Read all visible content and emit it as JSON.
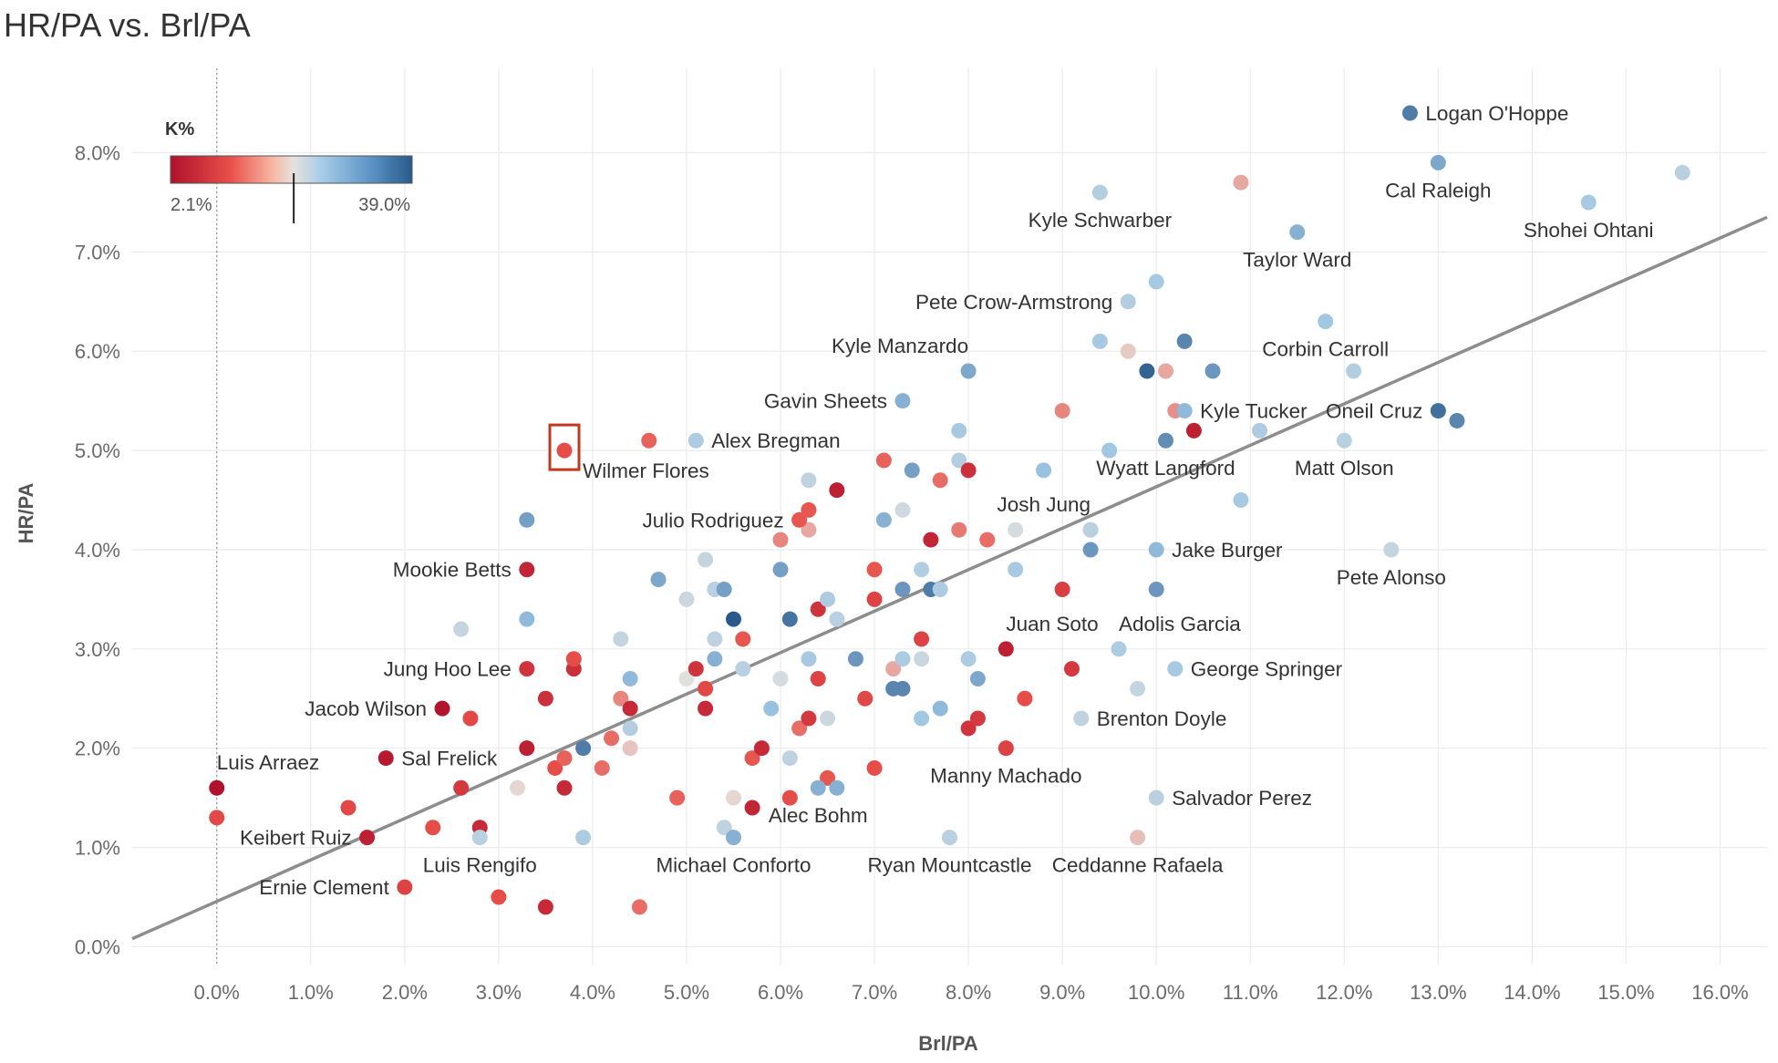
{
  "chart_data": {
    "type": "scatter",
    "title": "HR/PA vs. Brl/PA",
    "xlabel": "Brl/PA",
    "ylabel": "HR/PA",
    "xlim": [
      -0.9,
      16.5
    ],
    "ylim": [
      -0.18,
      8.85
    ],
    "x_ticks": [
      0,
      1,
      2,
      3,
      4,
      5,
      6,
      7,
      8,
      9,
      10,
      11,
      12,
      13,
      14,
      15,
      16
    ],
    "x_tick_labels": [
      "0.0%",
      "1.0%",
      "2.0%",
      "3.0%",
      "4.0%",
      "5.0%",
      "6.0%",
      "7.0%",
      "8.0%",
      "9.0%",
      "10.0%",
      "11.0%",
      "12.0%",
      "13.0%",
      "14.0%",
      "15.0%",
      "16.0%"
    ],
    "y_ticks": [
      0,
      1,
      2,
      3,
      4,
      5,
      6,
      7,
      8
    ],
    "y_tick_labels": [
      "0.0%",
      "1.0%",
      "2.0%",
      "3.0%",
      "4.0%",
      "5.0%",
      "6.0%",
      "7.0%",
      "8.0%"
    ],
    "trend_line": {
      "x": [
        -0.9,
        16.5
      ],
      "y": [
        0.08,
        7.35
      ]
    },
    "highlight": "Wilmer Flores",
    "legend": {
      "title": "K%",
      "min_label": "2.1%",
      "max_label": "39.0%",
      "marker_fraction": 0.51
    },
    "colors": {
      "low": "#b0112c",
      "mid_low": "#e8504a",
      "mid": "#e6e2dd",
      "mid_high": "#9fc6e3",
      "high": "#2a5a8c",
      "highlight_box": "#c1391f"
    },
    "named_points": [
      {
        "name": "Logan O'Hoppe",
        "x": 12.7,
        "y": 8.4,
        "k": 0.92,
        "label_pos": "right"
      },
      {
        "name": "Cal Raleigh",
        "x": 13.0,
        "y": 7.9,
        "k": 0.82,
        "label_pos": "below"
      },
      {
        "name": "Shohei Ohtani",
        "x": 14.6,
        "y": 7.5,
        "k": 0.72,
        "label_pos": "below"
      },
      {
        "name": "Kyle Schwarber",
        "x": 9.4,
        "y": 7.6,
        "k": 0.68,
        "label_pos": "below"
      },
      {
        "name": "Taylor Ward",
        "x": 11.5,
        "y": 7.2,
        "k": 0.8,
        "label_pos": "below"
      },
      {
        "name": "Pete Crow-Armstrong",
        "x": 9.7,
        "y": 6.5,
        "k": 0.68,
        "label_pos": "left"
      },
      {
        "name": "Corbin Carroll",
        "x": 11.8,
        "y": 6.3,
        "k": 0.74,
        "label_pos": "below"
      },
      {
        "name": "Kyle Manzardo",
        "x": 8.0,
        "y": 5.8,
        "k": 0.82,
        "label_pos": "above-left"
      },
      {
        "name": "Gavin Sheets",
        "x": 7.3,
        "y": 5.5,
        "k": 0.8,
        "label_pos": "left"
      },
      {
        "name": "Kyle Tucker",
        "x": 10.3,
        "y": 5.4,
        "k": 0.78,
        "label_pos": "right"
      },
      {
        "name": "Oneil Cruz",
        "x": 13.0,
        "y": 5.4,
        "k": 0.95,
        "label_pos": "left"
      },
      {
        "name": "Alex Bregman",
        "x": 5.1,
        "y": 5.1,
        "k": 0.7,
        "label_pos": "right"
      },
      {
        "name": "Wilmer Flores",
        "x": 3.7,
        "y": 5.0,
        "k": 0.24,
        "label_pos": "below-right"
      },
      {
        "name": "Wyatt Langford",
        "x": 10.1,
        "y": 5.1,
        "k": 0.88,
        "label_pos": "below"
      },
      {
        "name": "Matt Olson",
        "x": 12.0,
        "y": 5.1,
        "k": 0.66,
        "label_pos": "below"
      },
      {
        "name": "Julio Rodriguez",
        "x": 6.2,
        "y": 4.3,
        "k": 0.26,
        "label_pos": "left"
      },
      {
        "name": "Josh Jung",
        "x": 9.3,
        "y": 4.2,
        "k": 0.66,
        "label_pos": "above-left"
      },
      {
        "name": "Mookie Betts",
        "x": 3.3,
        "y": 3.8,
        "k": 0.08,
        "label_pos": "left"
      },
      {
        "name": "Jake Burger",
        "x": 10.0,
        "y": 4.0,
        "k": 0.78,
        "label_pos": "right"
      },
      {
        "name": "Pete Alonso",
        "x": 12.5,
        "y": 4.0,
        "k": 0.62,
        "label_pos": "below"
      },
      {
        "name": "Juan Soto",
        "x": 8.4,
        "y": 3.0,
        "k": 0.06,
        "label_pos": "above-right"
      },
      {
        "name": "Adolis Garcia",
        "x": 9.6,
        "y": 3.0,
        "k": 0.7,
        "label_pos": "above-right"
      },
      {
        "name": "Jung Hoo Lee",
        "x": 3.3,
        "y": 2.8,
        "k": 0.14,
        "label_pos": "left"
      },
      {
        "name": "George Springer",
        "x": 10.2,
        "y": 2.8,
        "k": 0.72,
        "label_pos": "right"
      },
      {
        "name": "Jacob Wilson",
        "x": 2.4,
        "y": 2.4,
        "k": 0.01,
        "label_pos": "left"
      },
      {
        "name": "Brenton Doyle",
        "x": 9.2,
        "y": 2.3,
        "k": 0.64,
        "label_pos": "right"
      },
      {
        "name": "Luis Arraez",
        "x": 0.0,
        "y": 1.6,
        "k": 0.0,
        "label_pos": "above-right"
      },
      {
        "name": "Sal Frelick",
        "x": 1.8,
        "y": 1.9,
        "k": 0.03,
        "label_pos": "right"
      },
      {
        "name": "Manny Machado",
        "x": 8.4,
        "y": 2.0,
        "k": 0.2,
        "label_pos": "below"
      },
      {
        "name": "Salvador Perez",
        "x": 10.0,
        "y": 1.5,
        "k": 0.66,
        "label_pos": "right"
      },
      {
        "name": "Alec Bohm",
        "x": 6.4,
        "y": 1.6,
        "k": 0.8,
        "label_pos": "below"
      },
      {
        "name": "Keibert Ruiz",
        "x": 1.6,
        "y": 1.1,
        "k": 0.06,
        "label_pos": "left"
      },
      {
        "name": "Ryan Mountcastle",
        "x": 7.8,
        "y": 1.1,
        "k": 0.66,
        "label_pos": "below"
      },
      {
        "name": "Ceddanne Rafaela",
        "x": 9.8,
        "y": 1.1,
        "k": 0.44,
        "label_pos": "below"
      },
      {
        "name": "Luis Rengifo",
        "x": 2.8,
        "y": 1.1,
        "k": 0.66,
        "label_pos": "below"
      },
      {
        "name": "Michael Conforto",
        "x": 5.5,
        "y": 1.1,
        "k": 0.8,
        "label_pos": "below"
      },
      {
        "name": "Ernie Clement",
        "x": 2.0,
        "y": 0.6,
        "k": 0.2,
        "label_pos": "left"
      }
    ],
    "other_points": [
      [
        0.0,
        1.3,
        0.22
      ],
      [
        1.4,
        1.4,
        0.22
      ],
      [
        2.3,
        1.2,
        0.24
      ],
      [
        2.6,
        1.6,
        0.16
      ],
      [
        2.7,
        2.3,
        0.22
      ],
      [
        2.8,
        1.2,
        0.1
      ],
      [
        3.0,
        0.5,
        0.24
      ],
      [
        3.2,
        1.6,
        0.48
      ],
      [
        3.3,
        2.0,
        0.06
      ],
      [
        3.3,
        3.3,
        0.78
      ],
      [
        3.3,
        4.3,
        0.84
      ],
      [
        3.5,
        0.4,
        0.1
      ],
      [
        3.5,
        2.5,
        0.12
      ],
      [
        3.6,
        1.8,
        0.24
      ],
      [
        3.7,
        1.6,
        0.1
      ],
      [
        3.7,
        1.9,
        0.28
      ],
      [
        3.8,
        2.8,
        0.12
      ],
      [
        3.8,
        2.9,
        0.24
      ],
      [
        2.6,
        3.2,
        0.62
      ],
      [
        3.9,
        2.0,
        0.92
      ],
      [
        3.9,
        1.1,
        0.7
      ],
      [
        4.1,
        1.8,
        0.3
      ],
      [
        4.2,
        2.1,
        0.3
      ],
      [
        4.3,
        2.5,
        0.34
      ],
      [
        4.4,
        2.4,
        0.1
      ],
      [
        4.4,
        2.2,
        0.68
      ],
      [
        4.4,
        2.0,
        0.45
      ],
      [
        4.3,
        3.1,
        0.62
      ],
      [
        4.4,
        2.7,
        0.78
      ],
      [
        4.6,
        5.1,
        0.28
      ],
      [
        4.7,
        3.7,
        0.82
      ],
      [
        4.5,
        0.4,
        0.3
      ],
      [
        4.9,
        1.5,
        0.28
      ],
      [
        5.0,
        2.7,
        0.52
      ],
      [
        5.0,
        3.5,
        0.6
      ],
      [
        5.1,
        2.8,
        0.14
      ],
      [
        5.2,
        2.6,
        0.22
      ],
      [
        5.2,
        2.4,
        0.1
      ],
      [
        5.2,
        3.9,
        0.62
      ],
      [
        5.3,
        3.1,
        0.64
      ],
      [
        5.3,
        2.9,
        0.8
      ],
      [
        5.3,
        3.6,
        0.66
      ],
      [
        5.4,
        3.6,
        0.84
      ],
      [
        5.5,
        3.3,
        1.0
      ],
      [
        5.5,
        1.5,
        0.48
      ],
      [
        5.4,
        1.2,
        0.64
      ],
      [
        5.6,
        2.8,
        0.66
      ],
      [
        5.6,
        3.1,
        0.26
      ],
      [
        5.7,
        1.9,
        0.26
      ],
      [
        5.7,
        1.4,
        0.08
      ],
      [
        5.8,
        2.0,
        0.1
      ],
      [
        5.9,
        2.4,
        0.76
      ],
      [
        6.0,
        2.7,
        0.56
      ],
      [
        6.0,
        3.8,
        0.84
      ],
      [
        6.1,
        1.9,
        0.64
      ],
      [
        6.1,
        1.5,
        0.24
      ],
      [
        6.1,
        3.3,
        0.94
      ],
      [
        6.2,
        2.2,
        0.3
      ],
      [
        6.3,
        2.9,
        0.72
      ],
      [
        6.3,
        4.4,
        0.26
      ],
      [
        6.3,
        4.7,
        0.64
      ],
      [
        6.3,
        4.2,
        0.4
      ],
      [
        6.4,
        3.4,
        0.14
      ],
      [
        6.4,
        2.7,
        0.2
      ],
      [
        6.3,
        2.3,
        0.16
      ],
      [
        6.5,
        3.5,
        0.7
      ],
      [
        6.5,
        1.7,
        0.26
      ],
      [
        6.5,
        2.3,
        0.6
      ],
      [
        6.6,
        4.6,
        0.06
      ],
      [
        6.6,
        3.3,
        0.66
      ],
      [
        6.6,
        1.6,
        0.8
      ],
      [
        6.0,
        4.1,
        0.34
      ],
      [
        6.9,
        2.5,
        0.22
      ],
      [
        6.8,
        2.9,
        0.86
      ],
      [
        7.0,
        1.8,
        0.24
      ],
      [
        7.0,
        3.8,
        0.26
      ],
      [
        7.0,
        3.5,
        0.2
      ],
      [
        7.1,
        4.3,
        0.8
      ],
      [
        7.1,
        4.9,
        0.28
      ],
      [
        7.2,
        2.8,
        0.4
      ],
      [
        7.2,
        2.6,
        0.9
      ],
      [
        7.3,
        2.9,
        0.7
      ],
      [
        7.3,
        4.4,
        0.58
      ],
      [
        7.3,
        3.6,
        0.86
      ],
      [
        7.3,
        2.6,
        0.9
      ],
      [
        7.4,
        4.8,
        0.84
      ],
      [
        7.5,
        3.1,
        0.2
      ],
      [
        7.5,
        2.3,
        0.74
      ],
      [
        7.5,
        3.8,
        0.68
      ],
      [
        7.5,
        2.9,
        0.6
      ],
      [
        7.6,
        3.6,
        0.92
      ],
      [
        7.6,
        4.1,
        0.08
      ],
      [
        7.7,
        3.6,
        0.7
      ],
      [
        7.7,
        4.7,
        0.3
      ],
      [
        7.7,
        2.4,
        0.78
      ],
      [
        7.9,
        5.2,
        0.72
      ],
      [
        7.9,
        4.9,
        0.68
      ],
      [
        7.9,
        4.2,
        0.32
      ],
      [
        8.0,
        4.8,
        0.12
      ],
      [
        8.0,
        2.9,
        0.7
      ],
      [
        8.0,
        2.2,
        0.14
      ],
      [
        8.1,
        2.7,
        0.82
      ],
      [
        8.1,
        2.3,
        0.16
      ],
      [
        8.2,
        4.1,
        0.3
      ],
      [
        8.5,
        4.2,
        0.56
      ],
      [
        8.5,
        3.8,
        0.72
      ],
      [
        8.6,
        2.5,
        0.24
      ],
      [
        8.8,
        4.8,
        0.76
      ],
      [
        9.0,
        3.6,
        0.18
      ],
      [
        9.0,
        5.4,
        0.34
      ],
      [
        9.1,
        2.8,
        0.16
      ],
      [
        9.3,
        4.0,
        0.86
      ],
      [
        9.3,
        4.2,
        0.66
      ],
      [
        9.4,
        6.1,
        0.72
      ],
      [
        9.5,
        5.0,
        0.74
      ],
      [
        9.7,
        6.0,
        0.46
      ],
      [
        9.8,
        2.6,
        0.62
      ],
      [
        9.9,
        5.8,
        0.98
      ],
      [
        10.0,
        3.6,
        0.86
      ],
      [
        10.0,
        6.7,
        0.72
      ],
      [
        10.1,
        5.8,
        0.4
      ],
      [
        10.2,
        5.4,
        0.36
      ],
      [
        10.3,
        6.1,
        0.9
      ],
      [
        10.4,
        5.2,
        0.06
      ],
      [
        10.6,
        5.8,
        0.86
      ],
      [
        10.9,
        4.5,
        0.72
      ],
      [
        10.9,
        7.7,
        0.4
      ],
      [
        11.1,
        5.2,
        0.7
      ],
      [
        12.1,
        5.8,
        0.68
      ],
      [
        13.2,
        5.3,
        0.9
      ],
      [
        15.6,
        7.8,
        0.66
      ]
    ]
  }
}
